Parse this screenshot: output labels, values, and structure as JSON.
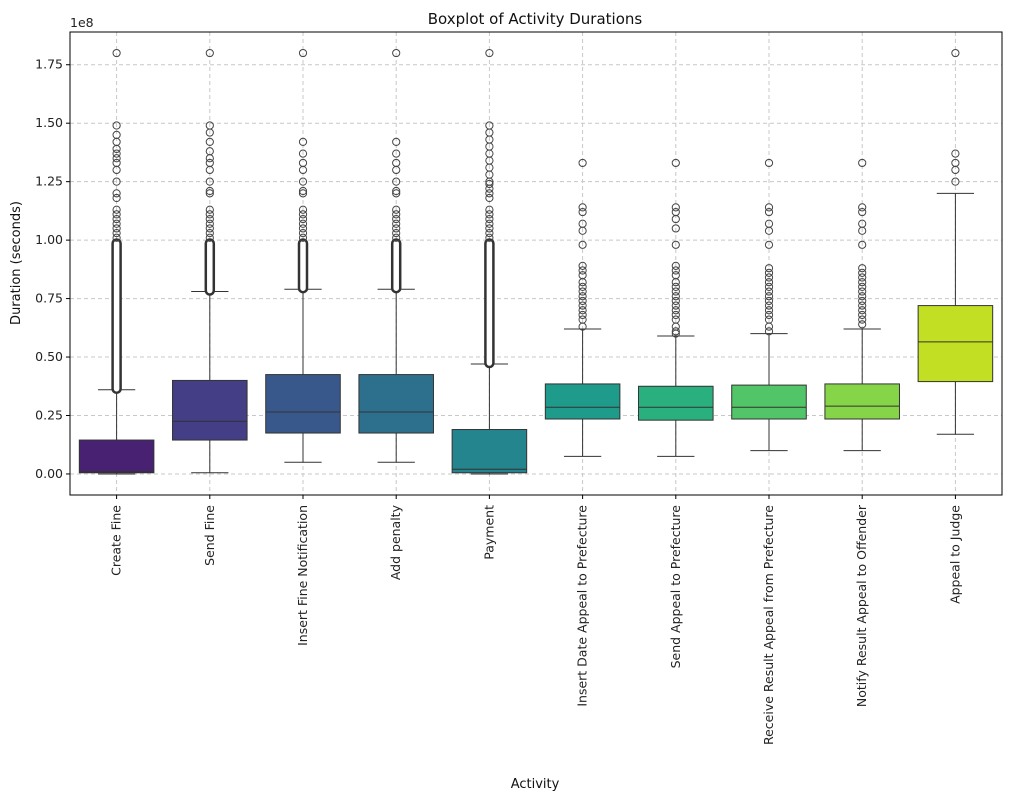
{
  "chart_data": {
    "type": "box",
    "title": "Boxplot of Activity Durations",
    "xlabel": "Activity",
    "ylabel": "Duration (seconds)",
    "y_scale_label": "1e8",
    "y_scale": 100000000,
    "ylim": [
      -0.09,
      1.89
    ],
    "yticks": [
      0.0,
      0.25,
      0.5,
      0.75,
      1.0,
      1.25,
      1.5,
      1.75
    ],
    "ytick_labels": [
      "0.00",
      "0.25",
      "0.50",
      "0.75",
      "1.00",
      "1.25",
      "1.50",
      "1.75"
    ],
    "grid": true,
    "categories": [
      "Create Fine",
      "Send Fine",
      "Insert Fine Notification",
      "Add penalty",
      "Payment",
      "Insert Date Appeal to Prefecture",
      "Send Appeal to Prefecture",
      "Receive Result Appeal from Prefecture",
      "Notify Result Appeal to Offender",
      "Appeal to Judge"
    ],
    "colors": [
      "#482173",
      "#433e85",
      "#38588c",
      "#2d708e",
      "#25858e",
      "#1e9b8a",
      "#2ab07f",
      "#52c569",
      "#86d549",
      "#c2df23"
    ],
    "boxes": [
      {
        "whisker_low": 0.0,
        "q1": 0.005,
        "median": 0.01,
        "q3": 0.145,
        "whisker_high": 0.36,
        "outlier_band": [
          0.36,
          0.99
        ],
        "outliers": [
          1.8,
          1.49,
          1.45,
          1.42,
          1.39,
          1.37,
          1.35,
          1.33,
          1.3,
          1.25,
          1.2,
          1.18,
          1.13,
          1.11,
          1.09,
          1.07,
          1.05,
          1.03,
          1.01
        ]
      },
      {
        "whisker_low": 0.005,
        "q1": 0.145,
        "median": 0.225,
        "q3": 0.4,
        "whisker_high": 0.78,
        "outlier_band": [
          0.78,
          0.99
        ],
        "outliers": [
          1.8,
          1.49,
          1.46,
          1.42,
          1.38,
          1.35,
          1.33,
          1.3,
          1.25,
          1.21,
          1.2,
          1.13,
          1.11,
          1.09,
          1.07,
          1.05,
          1.03,
          1.01
        ]
      },
      {
        "whisker_low": 0.05,
        "q1": 0.175,
        "median": 0.265,
        "q3": 0.425,
        "whisker_high": 0.79,
        "outlier_band": [
          0.79,
          0.99
        ],
        "outliers": [
          1.8,
          1.42,
          1.37,
          1.33,
          1.3,
          1.25,
          1.21,
          1.2,
          1.13,
          1.11,
          1.09,
          1.07,
          1.05,
          1.03,
          1.01
        ]
      },
      {
        "whisker_low": 0.05,
        "q1": 0.175,
        "median": 0.265,
        "q3": 0.425,
        "whisker_high": 0.79,
        "outlier_band": [
          0.79,
          0.99
        ],
        "outliers": [
          1.8,
          1.42,
          1.37,
          1.33,
          1.3,
          1.25,
          1.21,
          1.2,
          1.13,
          1.11,
          1.09,
          1.07,
          1.05,
          1.03,
          1.01
        ]
      },
      {
        "whisker_low": 0.0,
        "q1": 0.005,
        "median": 0.02,
        "q3": 0.19,
        "whisker_high": 0.47,
        "outlier_band": [
          0.47,
          0.99
        ],
        "outliers": [
          1.8,
          1.49,
          1.46,
          1.43,
          1.4,
          1.37,
          1.34,
          1.31,
          1.28,
          1.25,
          1.24,
          1.22,
          1.2,
          1.18,
          1.13,
          1.11,
          1.09,
          1.07,
          1.05,
          1.03,
          1.01
        ]
      },
      {
        "whisker_low": 0.075,
        "q1": 0.235,
        "median": 0.285,
        "q3": 0.385,
        "whisker_high": 0.62,
        "outlier_band": null,
        "outliers": [
          1.33,
          1.14,
          1.12,
          1.07,
          1.04,
          0.98,
          0.89,
          0.87,
          0.85,
          0.82,
          0.8,
          0.78,
          0.76,
          0.74,
          0.72,
          0.7,
          0.68,
          0.66,
          0.63
        ]
      },
      {
        "whisker_low": 0.075,
        "q1": 0.23,
        "median": 0.285,
        "q3": 0.375,
        "whisker_high": 0.59,
        "outlier_band": null,
        "outliers": [
          1.33,
          1.14,
          1.12,
          1.09,
          1.05,
          0.98,
          0.89,
          0.87,
          0.85,
          0.82,
          0.8,
          0.78,
          0.76,
          0.74,
          0.72,
          0.7,
          0.68,
          0.66,
          0.63,
          0.61,
          0.6
        ]
      },
      {
        "whisker_low": 0.1,
        "q1": 0.235,
        "median": 0.285,
        "q3": 0.38,
        "whisker_high": 0.6,
        "outlier_band": null,
        "outliers": [
          1.33,
          1.14,
          1.12,
          1.07,
          1.04,
          0.98,
          0.88,
          0.86,
          0.84,
          0.82,
          0.8,
          0.78,
          0.76,
          0.74,
          0.72,
          0.7,
          0.68,
          0.66,
          0.63,
          0.61
        ]
      },
      {
        "whisker_low": 0.1,
        "q1": 0.235,
        "median": 0.29,
        "q3": 0.385,
        "whisker_high": 0.62,
        "outlier_band": null,
        "outliers": [
          1.33,
          1.14,
          1.12,
          1.07,
          1.04,
          0.98,
          0.88,
          0.86,
          0.84,
          0.82,
          0.8,
          0.78,
          0.76,
          0.74,
          0.72,
          0.7,
          0.68,
          0.66,
          0.64
        ]
      },
      {
        "whisker_low": 0.17,
        "q1": 0.395,
        "median": 0.565,
        "q3": 0.72,
        "whisker_high": 1.2,
        "outlier_band": null,
        "outliers": [
          1.8,
          1.37,
          1.33,
          1.3,
          1.25
        ]
      }
    ]
  }
}
